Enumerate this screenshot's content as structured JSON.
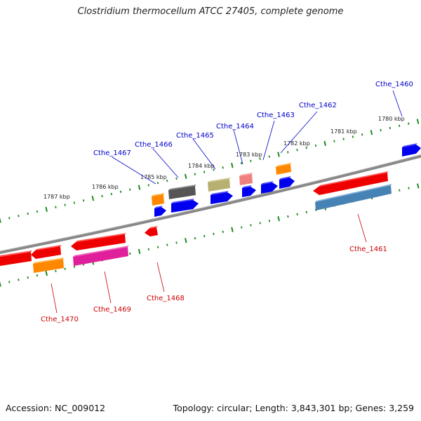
{
  "title": "Clostridium thermocellum ATCC 27405, complete genome",
  "footer": {
    "accession": "Accession: NC_009012",
    "topology": "Topology: circular; Length: 3,843,301 bp; Genes: 3,259"
  },
  "colors": {
    "backbone": "#888888",
    "tick": "#1e8a1e",
    "label_top": "#0000cc",
    "label_bottom": "#cc0000"
  },
  "kbp_labels": [
    "1780 kbp",
    "1781 kbp",
    "1782 kbp",
    "1783 kbp",
    "1784 kbp",
    "1785 kbp",
    "1786 kbp",
    "1787 kbp"
  ],
  "gene_labels_top": [
    "Cthe_1460",
    "Cthe_1462",
    "Cthe_1463",
    "Cthe_1464",
    "Cthe_1465",
    "Cthe_1466",
    "Cthe_1467"
  ],
  "gene_labels_bottom": [
    "Cthe_1461",
    "Cthe_1468",
    "Cthe_1469",
    "Cthe_1470"
  ]
}
